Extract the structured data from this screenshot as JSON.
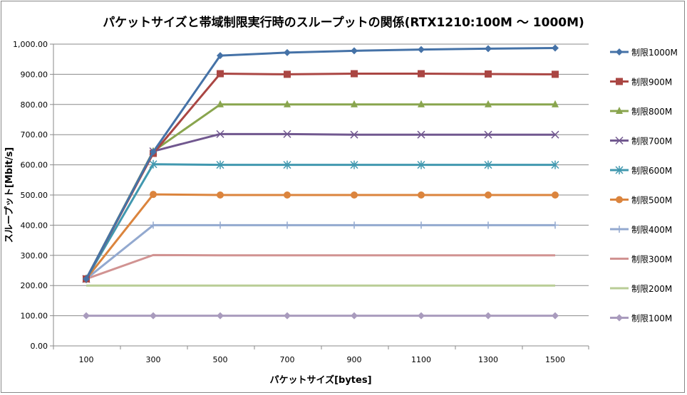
{
  "chart_data": {
    "type": "line",
    "title": "パケットサイズと帯域制限実行時のスループットの関係(RTX1210:100M 〜 1000M)",
    "xlabel": "パケットサイズ[bytes]",
    "ylabel": "スループット[Mbit/s]",
    "categories": [
      "100",
      "300",
      "500",
      "700",
      "900",
      "1100",
      "1300",
      "1500"
    ],
    "ylim": [
      0,
      1000
    ],
    "yticks": [
      "0.00",
      "100.00",
      "200.00",
      "300.00",
      "400.00",
      "500.00",
      "600.00",
      "700.00",
      "800.00",
      "900.00",
      "1,000.00"
    ],
    "grid": true,
    "legend_position": "right",
    "series": [
      {
        "name": "制限1000M",
        "color": "#4572A7",
        "marker": "diamond",
        "values": [
          222,
          643,
          962,
          972,
          978,
          982,
          985,
          987
        ]
      },
      {
        "name": "制限900M",
        "color": "#AA4643",
        "marker": "square",
        "values": [
          222,
          638,
          902,
          900,
          902,
          902,
          901,
          900
        ]
      },
      {
        "name": "制限800M",
        "color": "#89A54E",
        "marker": "triangle",
        "values": [
          222,
          645,
          800,
          800,
          800,
          800,
          800,
          800
        ]
      },
      {
        "name": "制限700M",
        "color": "#71588F",
        "marker": "x",
        "values": [
          222,
          645,
          702,
          702,
          700,
          700,
          700,
          700
        ]
      },
      {
        "name": "制限600M",
        "color": "#4198AF",
        "marker": "star",
        "values": [
          222,
          602,
          600,
          600,
          600,
          600,
          600,
          600
        ]
      },
      {
        "name": "制限500M",
        "color": "#DB843D",
        "marker": "circle",
        "values": [
          222,
          502,
          500,
          500,
          500,
          500,
          500,
          500
        ]
      },
      {
        "name": "制限400M",
        "color": "#93A9CF",
        "marker": "plus",
        "values": [
          222,
          400,
          400,
          400,
          400,
          400,
          400,
          400
        ]
      },
      {
        "name": "制限300M",
        "color": "#D19392",
        "marker": "none",
        "values": [
          222,
          301,
          300,
          300,
          300,
          300,
          300,
          300
        ]
      },
      {
        "name": "制限200M",
        "color": "#B9CD96",
        "marker": "none",
        "values": [
          200,
          200,
          200,
          200,
          200,
          200,
          200,
          200
        ]
      },
      {
        "name": "制限100M",
        "color": "#A99BBD",
        "marker": "diamond",
        "values": [
          100,
          100,
          100,
          100,
          100,
          100,
          100,
          100
        ]
      }
    ]
  }
}
